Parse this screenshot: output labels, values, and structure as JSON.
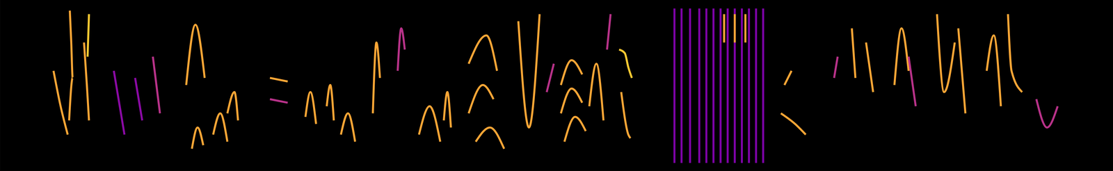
{
  "chart_data": {
    "type": "line",
    "xlim": [
      0,
      1568
    ],
    "ylim": [
      0,
      241
    ],
    "tick_labels": false,
    "grid": false,
    "series": [
      {
        "color": "#fca636",
        "x": [
          98,
          100,
          102,
          97
        ],
        "values": [
          226,
          181,
          131,
          71
        ]
      },
      {
        "color": "#fca636",
        "x": [
          75,
          85,
          95
        ],
        "values": [
          141,
          91,
          51
        ]
      },
      {
        "color": "#fca636",
        "x": [
          118,
          122,
          125
        ],
        "values": [
          181,
          121,
          71
        ]
      },
      {
        "color": "#f9c932",
        "x": [
          125,
          123
        ],
        "values": [
          221,
          161
        ]
      },
      {
        "color": "#8b0aa5",
        "x": [
          160,
          175
        ],
        "values": [
          141,
          51
        ]
      },
      {
        "color": "#8b0aa5",
        "x": [
          190,
          200
        ],
        "values": [
          131,
          71
        ]
      },
      {
        "color": "#b83289",
        "x": [
          215,
          225
        ],
        "values": [
          161,
          81
        ]
      },
      {
        "color": "#fca636",
        "x": [
          262,
          275,
          288
        ],
        "values": [
          121,
          206,
          131
        ]
      },
      {
        "color": "#fca636",
        "x": [
          270,
          278,
          286
        ],
        "values": [
          31,
          61,
          36
        ]
      },
      {
        "color": "#fca636",
        "x": [
          300,
          310,
          320
        ],
        "values": [
          51,
          81,
          41
        ]
      },
      {
        "color": "#fca636",
        "x": [
          320,
          330,
          335
        ],
        "values": [
          81,
          111,
          71
        ]
      },
      {
        "color": "#fca636",
        "x": [
          380,
          405
        ],
        "values": [
          131,
          126
        ]
      },
      {
        "color": "#b83289",
        "x": [
          380,
          405
        ],
        "values": [
          101,
          96
        ]
      },
      {
        "color": "#fca636",
        "x": [
          430,
          437,
          445
        ],
        "values": [
          76,
          111,
          66
        ]
      },
      {
        "color": "#fca636",
        "x": [
          460,
          465,
          470
        ],
        "values": [
          91,
          121,
          71
        ]
      },
      {
        "color": "#fca636",
        "x": [
          480,
          490,
          500
        ],
        "values": [
          51,
          81,
          41
        ]
      },
      {
        "color": "#fca636",
        "x": [
          525,
          530,
          535
        ],
        "values": [
          81,
          181,
          131
        ]
      },
      {
        "color": "#b83289",
        "x": [
          560,
          565,
          570
        ],
        "values": [
          141,
          201,
          171
        ]
      },
      {
        "color": "#fca636",
        "x": [
          590,
          605,
          620
        ],
        "values": [
          51,
          91,
          41
        ]
      },
      {
        "color": "#fca636",
        "x": [
          625,
          630,
          635
        ],
        "values": [
          71,
          111,
          61
        ]
      },
      {
        "color": "#fca636",
        "x": [
          660,
          685,
          700
        ],
        "values": [
          151,
          191,
          141
        ]
      },
      {
        "color": "#fca636",
        "x": [
          660,
          680,
          695
        ],
        "values": [
          81,
          121,
          101
        ]
      },
      {
        "color": "#fca636",
        "x": [
          670,
          690,
          710
        ],
        "values": [
          41,
          61,
          31
        ]
      },
      {
        "color": "#fca636",
        "x": [
          730,
          745,
          760
        ],
        "values": [
          211,
          61,
          221
        ]
      },
      {
        "color": "#b83289",
        "x": [
          770,
          780
        ],
        "values": [
          111,
          151
        ]
      },
      {
        "color": "#fca636",
        "x": [
          790,
          805,
          820
        ],
        "values": [
          121,
          156,
          136
        ]
      },
      {
        "color": "#fca636",
        "x": [
          790,
          805,
          820
        ],
        "values": [
          81,
          116,
          96
        ]
      },
      {
        "color": "#fca636",
        "x": [
          795,
          810,
          825
        ],
        "values": [
          41,
          76,
          56
        ]
      },
      {
        "color": "#fca636",
        "x": [
          830,
          840,
          850
        ],
        "values": [
          91,
          151,
          71
        ]
      },
      {
        "color": "#b83289",
        "x": [
          855,
          860
        ],
        "values": [
          171,
          221
        ]
      },
      {
        "color": "#f9c932",
        "x": [
          872,
          880,
          885,
          890
        ],
        "values": [
          171,
          166,
          146,
          131
        ]
      },
      {
        "color": "#fca636",
        "x": [
          875,
          885,
          888
        ],
        "values": [
          111,
          51,
          46
        ]
      },
      {
        "color": "#7e03a8",
        "x": [
          950,
          950
        ],
        "values": [
          229,
          11
        ]
      },
      {
        "color": "#7e03a8",
        "x": [
          960,
          960
        ],
        "values": [
          229,
          11
        ]
      },
      {
        "color": "#7e03a8",
        "x": [
          972,
          972
        ],
        "values": [
          229,
          11
        ]
      },
      {
        "color": "#7e03a8",
        "x": [
          985,
          985
        ],
        "values": [
          229,
          11
        ]
      },
      {
        "color": "#7e03a8",
        "x": [
          995,
          995
        ],
        "values": [
          229,
          11
        ]
      },
      {
        "color": "#7e03a8",
        "x": [
          1005,
          1005
        ],
        "values": [
          229,
          11
        ]
      },
      {
        "color": "#7e03a8",
        "x": [
          1015,
          1015
        ],
        "values": [
          229,
          11
        ]
      },
      {
        "color": "#7e03a8",
        "x": [
          1025,
          1025
        ],
        "values": [
          229,
          11
        ]
      },
      {
        "color": "#7e03a8",
        "x": [
          1035,
          1035
        ],
        "values": [
          229,
          11
        ]
      },
      {
        "color": "#7e03a8",
        "x": [
          1045,
          1045
        ],
        "values": [
          229,
          11
        ]
      },
      {
        "color": "#7e03a8",
        "x": [
          1055,
          1055
        ],
        "values": [
          229,
          11
        ]
      },
      {
        "color": "#7e03a8",
        "x": [
          1065,
          1065
        ],
        "values": [
          229,
          11
        ]
      },
      {
        "color": "#7e03a8",
        "x": [
          1075,
          1075
        ],
        "values": [
          229,
          11
        ]
      },
      {
        "color": "#fca636",
        "x": [
          1020,
          1020
        ],
        "values": [
          221,
          181
        ]
      },
      {
        "color": "#fca636",
        "x": [
          1035,
          1035
        ],
        "values": [
          221,
          181
        ]
      },
      {
        "color": "#fca636",
        "x": [
          1050,
          1050
        ],
        "values": [
          221,
          181
        ]
      },
      {
        "color": "#fca636",
        "x": [
          1100,
          1120,
          1135
        ],
        "values": [
          81,
          66,
          51
        ]
      },
      {
        "color": "#fca636",
        "x": [
          1105,
          1115
        ],
        "values": [
          121,
          141
        ]
      },
      {
        "color": "#b83289",
        "x": [
          1175,
          1180
        ],
        "values": [
          131,
          161
        ]
      },
      {
        "color": "#fca636",
        "x": [
          1200,
          1205
        ],
        "values": [
          201,
          131
        ]
      },
      {
        "color": "#fca636",
        "x": [
          1220,
          1230
        ],
        "values": [
          181,
          111
        ]
      },
      {
        "color": "#fca636",
        "x": [
          1260,
          1270,
          1280
        ],
        "values": [
          121,
          201,
          141
        ]
      },
      {
        "color": "#b83289",
        "x": [
          1280,
          1290
        ],
        "values": [
          161,
          91
        ]
      },
      {
        "color": "#fca636",
        "x": [
          1320,
          1330,
          1345
        ],
        "values": [
          221,
          111,
          181
        ]
      },
      {
        "color": "#fca636",
        "x": [
          1350,
          1360
        ],
        "values": [
          201,
          81
        ]
      },
      {
        "color": "#fca636",
        "x": [
          1390,
          1400,
          1410
        ],
        "values": [
          141,
          191,
          91
        ]
      },
      {
        "color": "#fca636",
        "x": [
          1420,
          1425,
          1440
        ],
        "values": [
          221,
          141,
          111
        ]
      },
      {
        "color": "#b83289",
        "x": [
          1460,
          1475,
          1490
        ],
        "values": [
          101,
          61,
          91
        ]
      }
    ]
  }
}
